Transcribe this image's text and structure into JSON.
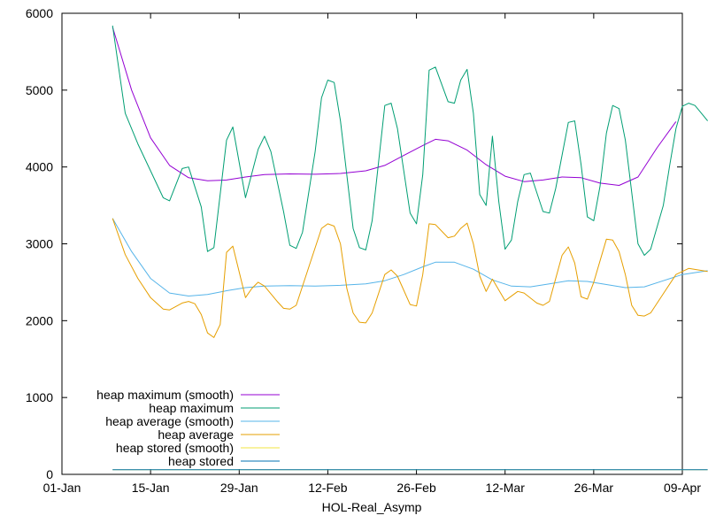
{
  "chart_data": {
    "type": "line",
    "title": "",
    "xlabel": "HOL-Real_Asymp",
    "ylabel": "",
    "xlim": [
      "2023-01-01",
      "2023-04-09"
    ],
    "ylim": [
      0,
      6000
    ],
    "x_ticks": [
      "01-Jan",
      "15-Jan",
      "29-Jan",
      "12-Feb",
      "26-Feb",
      "12-Mar",
      "26-Mar",
      "09-Apr"
    ],
    "y_ticks": [
      "0",
      "1000",
      "2000",
      "3000",
      "4000",
      "5000",
      "6000"
    ],
    "grid": false,
    "legend_position": "bottom-left",
    "series": [
      {
        "name": "heap maximum (smooth)",
        "color": "#9400d3",
        "points": [
          [
            "2023-01-09",
            5820
          ],
          [
            "2023-01-12",
            5000
          ],
          [
            "2023-01-15",
            4380
          ],
          [
            "2023-01-18",
            4020
          ],
          [
            "2023-01-21",
            3860
          ],
          [
            "2023-01-24",
            3820
          ],
          [
            "2023-01-27",
            3830
          ],
          [
            "2023-01-30",
            3870
          ],
          [
            "2023-02-02",
            3900
          ],
          [
            "2023-02-06",
            3910
          ],
          [
            "2023-02-10",
            3905
          ],
          [
            "2023-02-14",
            3915
          ],
          [
            "2023-02-18",
            3950
          ],
          [
            "2023-02-21",
            4020
          ],
          [
            "2023-02-24",
            4150
          ],
          [
            "2023-02-27",
            4280
          ],
          [
            "2023-03-01",
            4360
          ],
          [
            "2023-03-03",
            4340
          ],
          [
            "2023-03-06",
            4220
          ],
          [
            "2023-03-09",
            4030
          ],
          [
            "2023-03-12",
            3880
          ],
          [
            "2023-03-15",
            3810
          ],
          [
            "2023-03-18",
            3830
          ],
          [
            "2023-03-21",
            3870
          ],
          [
            "2023-03-24",
            3860
          ],
          [
            "2023-03-27",
            3790
          ],
          [
            "2023-03-30",
            3760
          ],
          [
            "2023-04-02",
            3870
          ],
          [
            "2023-04-05",
            4250
          ],
          [
            "2023-04-08",
            4590
          ]
        ]
      },
      {
        "name": "heap maximum",
        "color": "#009e73",
        "points": [
          [
            "2023-01-09",
            5840
          ],
          [
            "2023-01-11",
            4700
          ],
          [
            "2023-01-13",
            4300
          ],
          [
            "2023-01-15",
            3950
          ],
          [
            "2023-01-17",
            3600
          ],
          [
            "2023-01-18",
            3560
          ],
          [
            "2023-01-20",
            3980
          ],
          [
            "2023-01-21",
            4000
          ],
          [
            "2023-01-23",
            3480
          ],
          [
            "2023-01-24",
            2900
          ],
          [
            "2023-01-25",
            2950
          ],
          [
            "2023-01-27",
            4350
          ],
          [
            "2023-01-28",
            4520
          ],
          [
            "2023-01-30",
            3600
          ],
          [
            "2023-02-01",
            4230
          ],
          [
            "2023-02-02",
            4400
          ],
          [
            "2023-02-03",
            4200
          ],
          [
            "2023-02-05",
            3420
          ],
          [
            "2023-02-06",
            2980
          ],
          [
            "2023-02-07",
            2940
          ],
          [
            "2023-02-08",
            3150
          ],
          [
            "2023-02-10",
            4200
          ],
          [
            "2023-02-11",
            4900
          ],
          [
            "2023-02-12",
            5130
          ],
          [
            "2023-02-13",
            5100
          ],
          [
            "2023-02-14",
            4600
          ],
          [
            "2023-02-16",
            3200
          ],
          [
            "2023-02-17",
            2950
          ],
          [
            "2023-02-18",
            2920
          ],
          [
            "2023-02-19",
            3300
          ],
          [
            "2023-02-21",
            4800
          ],
          [
            "2023-02-22",
            4830
          ],
          [
            "2023-02-23",
            4500
          ],
          [
            "2023-02-25",
            3400
          ],
          [
            "2023-02-26",
            3260
          ],
          [
            "2023-02-27",
            3900
          ],
          [
            "2023-02-28",
            5260
          ],
          [
            "2023-03-01",
            5300
          ],
          [
            "2023-03-03",
            4850
          ],
          [
            "2023-03-04",
            4830
          ],
          [
            "2023-03-05",
            5130
          ],
          [
            "2023-03-06",
            5270
          ],
          [
            "2023-03-07",
            4700
          ],
          [
            "2023-03-08",
            3640
          ],
          [
            "2023-03-09",
            3500
          ],
          [
            "2023-03-10",
            4400
          ],
          [
            "2023-03-11",
            3550
          ],
          [
            "2023-03-12",
            2930
          ],
          [
            "2023-03-13",
            3050
          ],
          [
            "2023-03-14",
            3550
          ],
          [
            "2023-03-15",
            3900
          ],
          [
            "2023-03-16",
            3920
          ],
          [
            "2023-03-18",
            3420
          ],
          [
            "2023-03-19",
            3400
          ],
          [
            "2023-03-20",
            3720
          ],
          [
            "2023-03-22",
            4580
          ],
          [
            "2023-03-23",
            4600
          ],
          [
            "2023-03-24",
            4030
          ],
          [
            "2023-03-25",
            3350
          ],
          [
            "2023-03-26",
            3300
          ],
          [
            "2023-03-27",
            3750
          ],
          [
            "2023-03-28",
            4440
          ],
          [
            "2023-03-29",
            4800
          ],
          [
            "2023-03-30",
            4760
          ],
          [
            "2023-03-31",
            4350
          ],
          [
            "2023-04-02",
            3000
          ],
          [
            "2023-04-03",
            2850
          ],
          [
            "2023-04-04",
            2930
          ],
          [
            "2023-04-06",
            3500
          ],
          [
            "2023-04-07",
            4020
          ],
          [
            "2023-04-08",
            4500
          ],
          [
            "2023-04-09",
            4790
          ],
          [
            "2023-04-10",
            4830
          ],
          [
            "2023-04-11",
            4800
          ],
          [
            "2023-04-12",
            4700
          ],
          [
            "2023-04-13",
            4600
          ]
        ]
      },
      {
        "name": "heap average (smooth)",
        "color": "#56b4e9",
        "points": [
          [
            "2023-01-09",
            3330
          ],
          [
            "2023-01-12",
            2900
          ],
          [
            "2023-01-15",
            2550
          ],
          [
            "2023-01-18",
            2360
          ],
          [
            "2023-01-21",
            2320
          ],
          [
            "2023-01-24",
            2340
          ],
          [
            "2023-01-27",
            2390
          ],
          [
            "2023-01-30",
            2430
          ],
          [
            "2023-02-02",
            2450
          ],
          [
            "2023-02-06",
            2455
          ],
          [
            "2023-02-10",
            2450
          ],
          [
            "2023-02-14",
            2460
          ],
          [
            "2023-02-18",
            2480
          ],
          [
            "2023-02-21",
            2520
          ],
          [
            "2023-02-24",
            2600
          ],
          [
            "2023-02-27",
            2700
          ],
          [
            "2023-03-01",
            2760
          ],
          [
            "2023-03-04",
            2760
          ],
          [
            "2023-03-07",
            2670
          ],
          [
            "2023-03-10",
            2530
          ],
          [
            "2023-03-13",
            2450
          ],
          [
            "2023-03-16",
            2440
          ],
          [
            "2023-03-19",
            2480
          ],
          [
            "2023-03-22",
            2520
          ],
          [
            "2023-03-25",
            2510
          ],
          [
            "2023-03-28",
            2470
          ],
          [
            "2023-03-31",
            2430
          ],
          [
            "2023-04-03",
            2440
          ],
          [
            "2023-04-06",
            2520
          ],
          [
            "2023-04-09",
            2600
          ],
          [
            "2023-04-13",
            2650
          ]
        ]
      },
      {
        "name": "heap average",
        "color": "#e69f00",
        "points": [
          [
            "2023-01-09",
            3330
          ],
          [
            "2023-01-11",
            2860
          ],
          [
            "2023-01-13",
            2550
          ],
          [
            "2023-01-15",
            2300
          ],
          [
            "2023-01-17",
            2150
          ],
          [
            "2023-01-18",
            2140
          ],
          [
            "2023-01-20",
            2230
          ],
          [
            "2023-01-21",
            2250
          ],
          [
            "2023-01-22",
            2220
          ],
          [
            "2023-01-23",
            2080
          ],
          [
            "2023-01-24",
            1840
          ],
          [
            "2023-01-25",
            1780
          ],
          [
            "2023-01-26",
            1950
          ],
          [
            "2023-01-27",
            2890
          ],
          [
            "2023-01-28",
            2970
          ],
          [
            "2023-01-30",
            2300
          ],
          [
            "2023-01-31",
            2420
          ],
          [
            "2023-02-01",
            2500
          ],
          [
            "2023-02-02",
            2450
          ],
          [
            "2023-02-04",
            2250
          ],
          [
            "2023-02-05",
            2160
          ],
          [
            "2023-02-06",
            2150
          ],
          [
            "2023-02-07",
            2200
          ],
          [
            "2023-02-09",
            2700
          ],
          [
            "2023-02-11",
            3200
          ],
          [
            "2023-02-12",
            3260
          ],
          [
            "2023-02-13",
            3230
          ],
          [
            "2023-02-14",
            3000
          ],
          [
            "2023-02-15",
            2420
          ],
          [
            "2023-02-16",
            2100
          ],
          [
            "2023-02-17",
            1980
          ],
          [
            "2023-02-18",
            1970
          ],
          [
            "2023-02-19",
            2100
          ],
          [
            "2023-02-21",
            2600
          ],
          [
            "2023-02-22",
            2660
          ],
          [
            "2023-02-23",
            2580
          ],
          [
            "2023-02-25",
            2210
          ],
          [
            "2023-02-26",
            2190
          ],
          [
            "2023-02-27",
            2600
          ],
          [
            "2023-02-28",
            3260
          ],
          [
            "2023-03-01",
            3250
          ],
          [
            "2023-03-03",
            3080
          ],
          [
            "2023-03-04",
            3100
          ],
          [
            "2023-03-05",
            3200
          ],
          [
            "2023-03-06",
            3270
          ],
          [
            "2023-03-07",
            3000
          ],
          [
            "2023-03-08",
            2580
          ],
          [
            "2023-03-09",
            2380
          ],
          [
            "2023-03-10",
            2540
          ],
          [
            "2023-03-12",
            2260
          ],
          [
            "2023-03-14",
            2380
          ],
          [
            "2023-03-15",
            2360
          ],
          [
            "2023-03-17",
            2230
          ],
          [
            "2023-03-18",
            2200
          ],
          [
            "2023-03-19",
            2250
          ],
          [
            "2023-03-21",
            2850
          ],
          [
            "2023-03-22",
            2960
          ],
          [
            "2023-03-23",
            2750
          ],
          [
            "2023-03-24",
            2310
          ],
          [
            "2023-03-25",
            2280
          ],
          [
            "2023-03-26",
            2500
          ],
          [
            "2023-03-28",
            3060
          ],
          [
            "2023-03-29",
            3050
          ],
          [
            "2023-03-30",
            2900
          ],
          [
            "2023-03-31",
            2600
          ],
          [
            "2023-04-01",
            2200
          ],
          [
            "2023-04-02",
            2070
          ],
          [
            "2023-04-03",
            2060
          ],
          [
            "2023-04-04",
            2100
          ],
          [
            "2023-04-06",
            2350
          ],
          [
            "2023-04-08",
            2600
          ],
          [
            "2023-04-10",
            2680
          ],
          [
            "2023-04-13",
            2640
          ]
        ]
      },
      {
        "name": "heap stored (smooth)",
        "color": "#f0e442",
        "points": [
          [
            "2023-01-09",
            60
          ],
          [
            "2023-04-13",
            60
          ]
        ]
      },
      {
        "name": "heap stored",
        "color": "#0072b2",
        "points": [
          [
            "2023-01-09",
            60
          ],
          [
            "2023-04-13",
            60
          ]
        ]
      }
    ]
  }
}
